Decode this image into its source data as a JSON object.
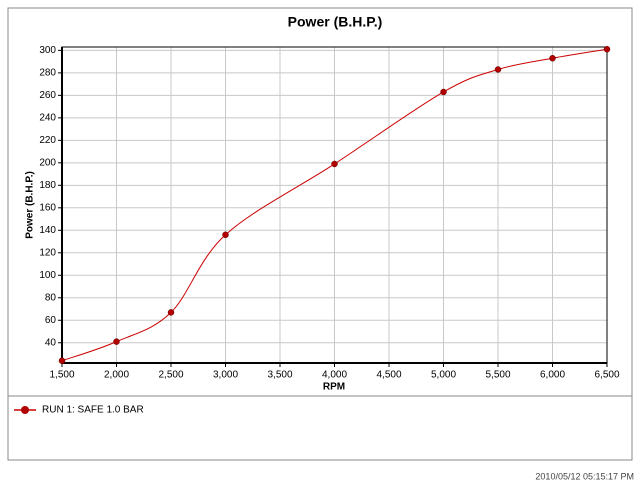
{
  "chart_data": {
    "type": "line",
    "title": "Power (B.H.P.)",
    "x_label": "RPM",
    "y_label": "Power (B.H.P.)",
    "x": [
      1500,
      2000,
      2500,
      3000,
      4000,
      5000,
      5500,
      6000,
      6500
    ],
    "series": [
      {
        "name": "RUN 1: SAFE 1.0 BAR",
        "color": "#cc0000",
        "marker_color": "#b00000",
        "values": [
          24,
          41,
          67,
          136,
          199,
          263,
          283,
          293,
          301
        ]
      }
    ],
    "xlim": [
      1500,
      6500
    ],
    "ylim": [
      22,
      303
    ],
    "xticks": [
      {
        "value": 1500,
        "label": "1,500"
      },
      {
        "value": 2000,
        "label": "2,000"
      },
      {
        "value": 2500,
        "label": "2,500"
      },
      {
        "value": 3000,
        "label": "3,000"
      },
      {
        "value": 3500,
        "label": "3,500"
      },
      {
        "value": 4000,
        "label": "4,000"
      },
      {
        "value": 4500,
        "label": "4,500"
      },
      {
        "value": 5000,
        "label": "5,000"
      },
      {
        "value": 5500,
        "label": "5,500"
      },
      {
        "value": 6000,
        "label": "6,000"
      },
      {
        "value": 6500,
        "label": "6,500"
      }
    ],
    "yticks": [
      40,
      60,
      80,
      100,
      120,
      140,
      160,
      180,
      200,
      220,
      240,
      260,
      280,
      300
    ],
    "grid": true,
    "legend": "bottom-left"
  },
  "footer": {
    "timestamp": "2010/05/12 05:15:17 PM"
  }
}
